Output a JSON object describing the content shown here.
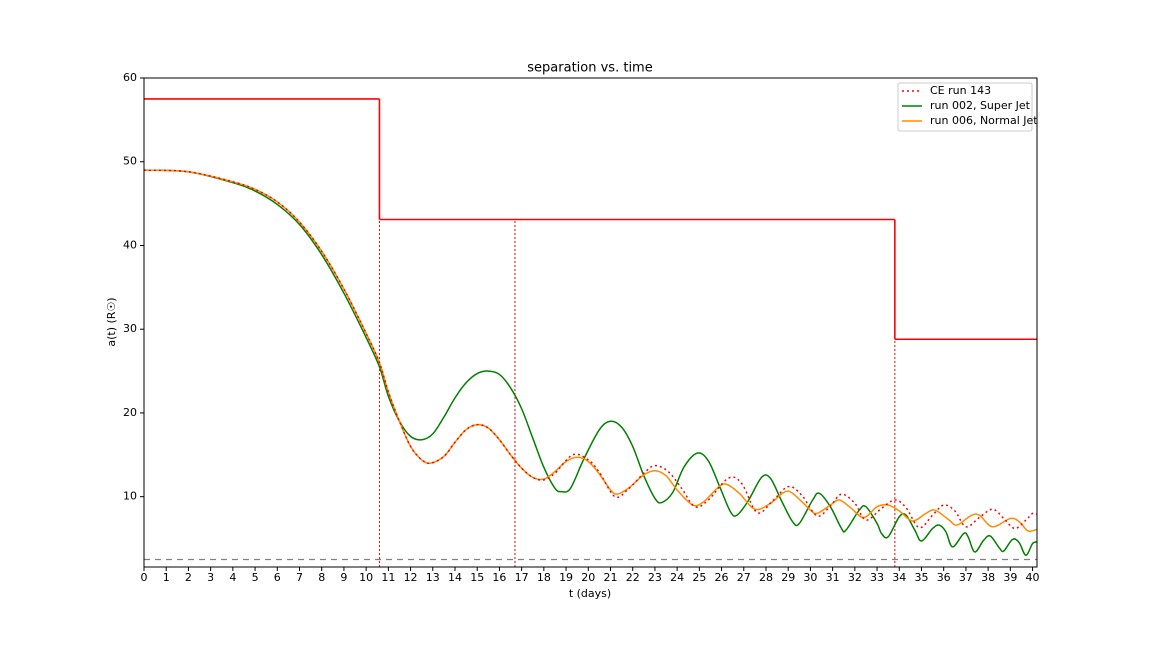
{
  "chart_data": {
    "type": "line",
    "title": "separation vs. time",
    "xlabel": "t (days)",
    "ylabel": "a(t) (R☉)",
    "xlim": [
      0,
      40.2
    ],
    "ylim": [
      1.6,
      60
    ],
    "xticks": [
      0,
      1,
      2,
      3,
      4,
      5,
      6,
      7,
      8,
      9,
      10,
      11,
      12,
      13,
      14,
      15,
      16,
      17,
      18,
      19,
      20,
      21,
      22,
      23,
      24,
      25,
      26,
      27,
      28,
      29,
      30,
      31,
      32,
      33,
      34,
      35,
      36,
      37,
      38,
      39,
      40
    ],
    "yticks": [
      10,
      20,
      30,
      40,
      50,
      60
    ],
    "legend": "upper right",
    "series": [
      {
        "name": "CE run 143",
        "color": "#ff0000",
        "style": "dotted",
        "x": [
          0,
          2,
          4,
          5,
          6,
          7,
          8,
          9,
          10,
          10.6,
          11,
          11.5,
          12,
          12.5,
          12.9,
          13.5,
          14,
          14.5,
          15,
          15.5,
          16,
          16.5,
          17,
          17.5,
          18,
          18.5,
          19.3,
          20,
          20.5,
          21.2,
          21.8,
          22.5,
          23,
          23.6,
          24.2,
          24.8,
          25.4,
          26.3,
          26.9,
          27.6,
          28.3,
          29,
          29.6,
          30.3,
          30.9,
          31.4,
          32,
          32.5,
          33.2,
          33.8,
          34.3,
          34.9,
          35.5,
          36,
          36.5,
          37,
          37.6,
          38.2,
          38.7,
          39.2,
          39.7,
          40,
          40.2
        ],
        "values": [
          49,
          48.8,
          47.6,
          46.7,
          45.2,
          42.8,
          39.3,
          34.8,
          29.5,
          26,
          22.5,
          19,
          16,
          14.4,
          14,
          14.8,
          16.5,
          18,
          18.6,
          18.2,
          16.8,
          15,
          13.4,
          12.3,
          12,
          12.8,
          15,
          14.4,
          12.9,
          10,
          10.9,
          12.8,
          13.7,
          13,
          11,
          8.8,
          9.6,
          12.2,
          11.6,
          8.1,
          9.5,
          11.2,
          10.2,
          7.7,
          8.9,
          10.3,
          9.2,
          7.2,
          8.6,
          9.6,
          8.7,
          6.3,
          7.8,
          9,
          8.3,
          6.4,
          7.5,
          8.5,
          7.4,
          6.2,
          7.2,
          8,
          7.9
        ]
      },
      {
        "name": "run 002, Super Jet",
        "color": "#008000",
        "style": "solid",
        "x": [
          0,
          2,
          4,
          5,
          6,
          7,
          8,
          9,
          10,
          10.6,
          11,
          11.5,
          12,
          12.5,
          13,
          13.5,
          14,
          14.5,
          15,
          15.5,
          16,
          16.5,
          17,
          17.5,
          18,
          18.5,
          18.8,
          19.2,
          19.8,
          20.5,
          21,
          21.5,
          22,
          22.5,
          23,
          23.3,
          23.8,
          24.3,
          24.9,
          25.4,
          25.9,
          26.4,
          26.7,
          27.2,
          27.8,
          28.2,
          28.7,
          29.2,
          29.5,
          30.1,
          30.4,
          30.9,
          31.4,
          31.6,
          32.2,
          32.5,
          33,
          33.2,
          33.5,
          34,
          34.3,
          34.7,
          35,
          35.5,
          35.8,
          36.1,
          36.4,
          36.9,
          37.1,
          37.4,
          37.8,
          38.1,
          38.5,
          38.7,
          39.1,
          39.4,
          39.7,
          40,
          40.2
        ],
        "values": [
          49,
          48.8,
          47.5,
          46.5,
          44.9,
          42.5,
          38.9,
          34.3,
          29,
          25.5,
          22,
          19,
          17.2,
          16.8,
          17.5,
          19.5,
          21.8,
          23.6,
          24.7,
          25,
          24.6,
          23,
          20.5,
          17,
          13.5,
          11,
          10.6,
          11,
          14.5,
          18,
          19,
          18.3,
          16,
          12.5,
          9.8,
          9.3,
          10.5,
          13.5,
          15.2,
          14.3,
          11.3,
          8.2,
          7.8,
          9.5,
          12.3,
          12.2,
          9.5,
          7,
          6.8,
          9.6,
          10.4,
          8.8,
          6.2,
          6,
          8.4,
          8.8,
          6.8,
          5.6,
          5.2,
          7.6,
          7.8,
          6,
          4.7,
          6.2,
          6.6,
          5.8,
          4,
          5.6,
          5.2,
          3.4,
          4.8,
          5.3,
          3.9,
          3.5,
          4.9,
          4.5,
          3,
          4.4,
          4.6
        ]
      },
      {
        "name": "run 006, Normal Jet",
        "color": "#ff8c00",
        "style": "solid",
        "x": [
          0,
          2,
          4,
          5,
          6,
          7,
          8,
          9,
          10,
          10.6,
          11,
          11.5,
          12,
          12.5,
          12.9,
          13.5,
          14,
          14.5,
          15,
          15.5,
          16,
          16.5,
          17,
          17.5,
          18,
          18.5,
          19,
          19.5,
          20,
          20.5,
          21,
          21.3,
          21.8,
          22.5,
          23,
          23.5,
          24,
          24.7,
          25.2,
          25.8,
          26.2,
          26.8,
          27.5,
          28.2,
          28.8,
          29.2,
          30,
          30.3,
          30.9,
          31.3,
          31.8,
          32.4,
          33,
          33.5,
          34,
          34.6,
          35.2,
          35.6,
          36.2,
          36.6,
          37.2,
          37.6,
          38.2,
          39,
          39.4,
          39.8,
          40.2
        ],
        "values": [
          49,
          48.8,
          47.6,
          46.7,
          45.2,
          42.8,
          39.3,
          34.8,
          29.5,
          26,
          22.5,
          19,
          16,
          14.4,
          14,
          14.8,
          16.5,
          18,
          18.6,
          18.2,
          16.8,
          15,
          13.4,
          12.3,
          12.1,
          13,
          14.2,
          14.7,
          14.2,
          12.7,
          10.8,
          10.3,
          11,
          12.6,
          13.1,
          12.5,
          10.8,
          9,
          9.4,
          11,
          11.5,
          10.4,
          8.5,
          9.2,
          10.5,
          10.4,
          8.4,
          8,
          9,
          9.6,
          8.7,
          7.5,
          8.8,
          9,
          8.3,
          7.1,
          8,
          8.4,
          7.3,
          6.6,
          7.7,
          7.8,
          6.4,
          7.4,
          7,
          5.9,
          6.1
        ]
      }
    ],
    "step_line": {
      "color": "#ff0000",
      "x": [
        0,
        10.6,
        33.8
      ],
      "values": [
        57.5,
        43.1,
        28.8
      ]
    },
    "vlines": {
      "color": "#ff0000",
      "x": [
        10.6,
        16.7,
        33.8
      ]
    },
    "hline": {
      "color": "#808080",
      "value": 2.5
    }
  }
}
